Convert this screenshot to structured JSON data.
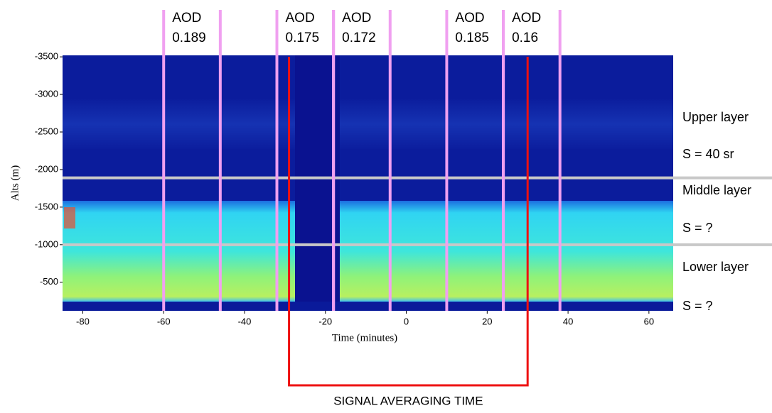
{
  "chart_data": {
    "type": "heatmap",
    "x_label": "Time (minutes)",
    "y_label": "Alts (m)",
    "xlim": [
      -85,
      66
    ],
    "xticks": [
      -80,
      -60,
      -40,
      -20,
      0,
      20,
      40,
      60
    ],
    "ylim": [
      -3520,
      -120
    ],
    "yticks": [
      -3500,
      -3000,
      -2500,
      -2000,
      -1500,
      -1000,
      -500
    ],
    "y_reversed": true,
    "aod_windows": [
      {
        "label": "AOD",
        "value": 0.189,
        "start": -60,
        "end": -46
      },
      {
        "label": "AOD",
        "value": 0.175,
        "start": -32,
        "end": -18
      },
      {
        "label": "AOD",
        "value": 0.172,
        "start": -18,
        "end": -4
      },
      {
        "label": "AOD",
        "value": 0.185,
        "start": 10,
        "end": 24
      },
      {
        "label": "AOD",
        "value": 0.16,
        "start": 24,
        "end": 38
      }
    ],
    "window_color": "#f0a0f0",
    "layer_boundaries": [
      -1890,
      -1000
    ],
    "boundary_color": "#c8c8c8",
    "layers": [
      {
        "name": "Upper layer",
        "ratio": "S = 40 sr"
      },
      {
        "name": "Middle layer",
        "ratio": "S = ?"
      },
      {
        "name": "Lower layer",
        "ratio": "S = ?"
      }
    ],
    "averaging": {
      "label": "SIGNAL AVERAGING TIME",
      "start": -29,
      "end": 30,
      "color": "#ee1111"
    }
  }
}
